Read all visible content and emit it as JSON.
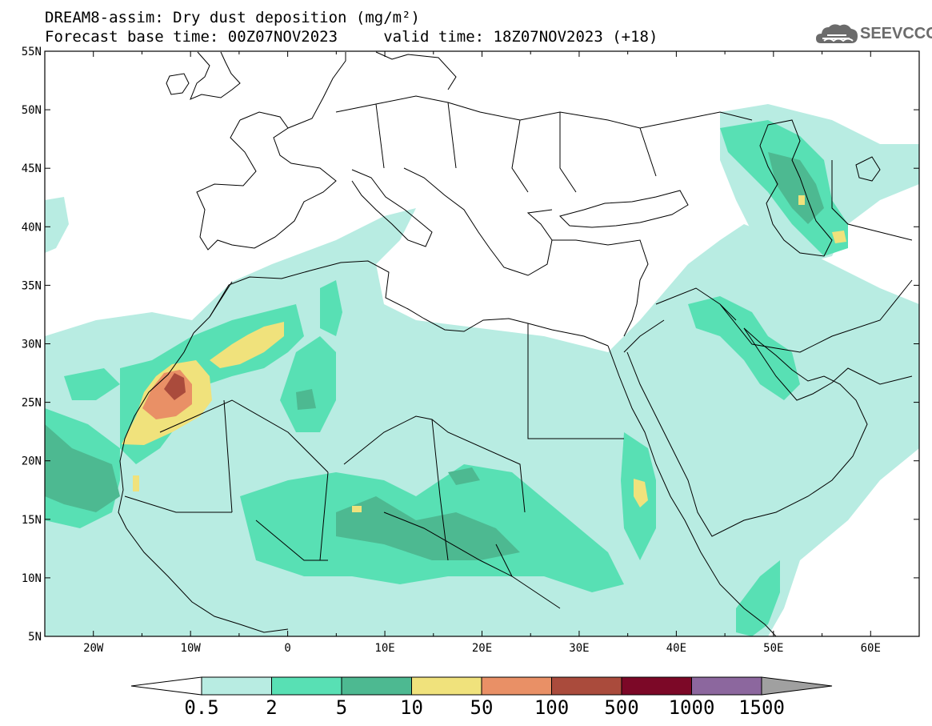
{
  "header": {
    "title_line1": "DREAM8-assim: Dry dust deposition (mg/m²)",
    "title_line2": "Forecast base time: 00Z07NOV2023     valid time: 18Z07NOV2023 (+18)"
  },
  "logo": {
    "text": "SEEVCCC",
    "icon": "cloud-icon"
  },
  "map": {
    "lon_range": [
      -25,
      65
    ],
    "lat_range": [
      5,
      55
    ],
    "lon_ticks": [
      {
        "value": -20,
        "label": "20W"
      },
      {
        "value": -10,
        "label": "10W"
      },
      {
        "value": 0,
        "label": "0"
      },
      {
        "value": 10,
        "label": "10E"
      },
      {
        "value": 20,
        "label": "20E"
      },
      {
        "value": 30,
        "label": "30E"
      },
      {
        "value": 40,
        "label": "40E"
      },
      {
        "value": 50,
        "label": "50E"
      },
      {
        "value": 60,
        "label": "60E"
      }
    ],
    "lat_ticks": [
      {
        "value": 55,
        "label": "55N"
      },
      {
        "value": 50,
        "label": "50N"
      },
      {
        "value": 45,
        "label": "45N"
      },
      {
        "value": 40,
        "label": "40N"
      },
      {
        "value": 35,
        "label": "35N"
      },
      {
        "value": 30,
        "label": "30N"
      },
      {
        "value": 25,
        "label": "25N"
      },
      {
        "value": 20,
        "label": "20N"
      },
      {
        "value": 15,
        "label": "15N"
      },
      {
        "value": 10,
        "label": "10N"
      },
      {
        "value": 5,
        "label": "5N"
      }
    ],
    "colors": {
      "level1": "#b8ece2",
      "level2": "#58e0b4",
      "level3": "#4db991",
      "level4": "#f0e27c",
      "level5": "#e99066",
      "level6": "#aa4b3c",
      "level7": "#7c0827",
      "level8": "#8c679e",
      "over": "#a0a0a0",
      "coast": "#000000"
    }
  },
  "legend": {
    "labels": [
      "0.5",
      "2",
      "5",
      "10",
      "50",
      "100",
      "500",
      "1000",
      "1500"
    ],
    "colors": [
      "#b8ece2",
      "#58e0b4",
      "#4db991",
      "#f0e27c",
      "#e99066",
      "#aa4b3c",
      "#7c0827",
      "#8c679e"
    ],
    "under_color": "#ffffff",
    "over_color": "#a0a0a0"
  }
}
